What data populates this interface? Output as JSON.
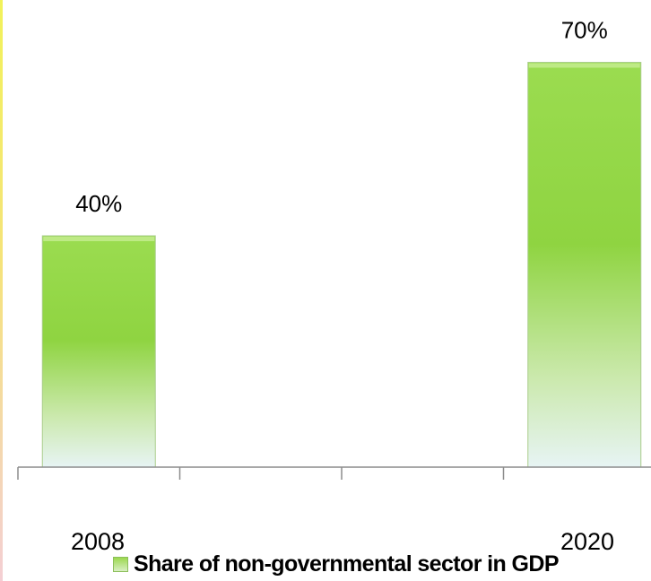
{
  "chart_data": {
    "type": "bar",
    "categories": [
      "2008",
      "2020"
    ],
    "series": [
      {
        "name": "Share of non-governmental sector in GDP",
        "values": [
          40,
          70
        ]
      }
    ],
    "data_labels": [
      "40%",
      "70%"
    ],
    "x_ticks": [
      "2008",
      "",
      "",
      "2020"
    ],
    "ylim": [
      0,
      100
    ],
    "grid": false,
    "legend": "bottom",
    "colors": {
      "bar_top": "#9bdc50",
      "bar_bottom": "#e7f4f4",
      "axis": "#8c8c8c",
      "text": "#000000"
    }
  }
}
